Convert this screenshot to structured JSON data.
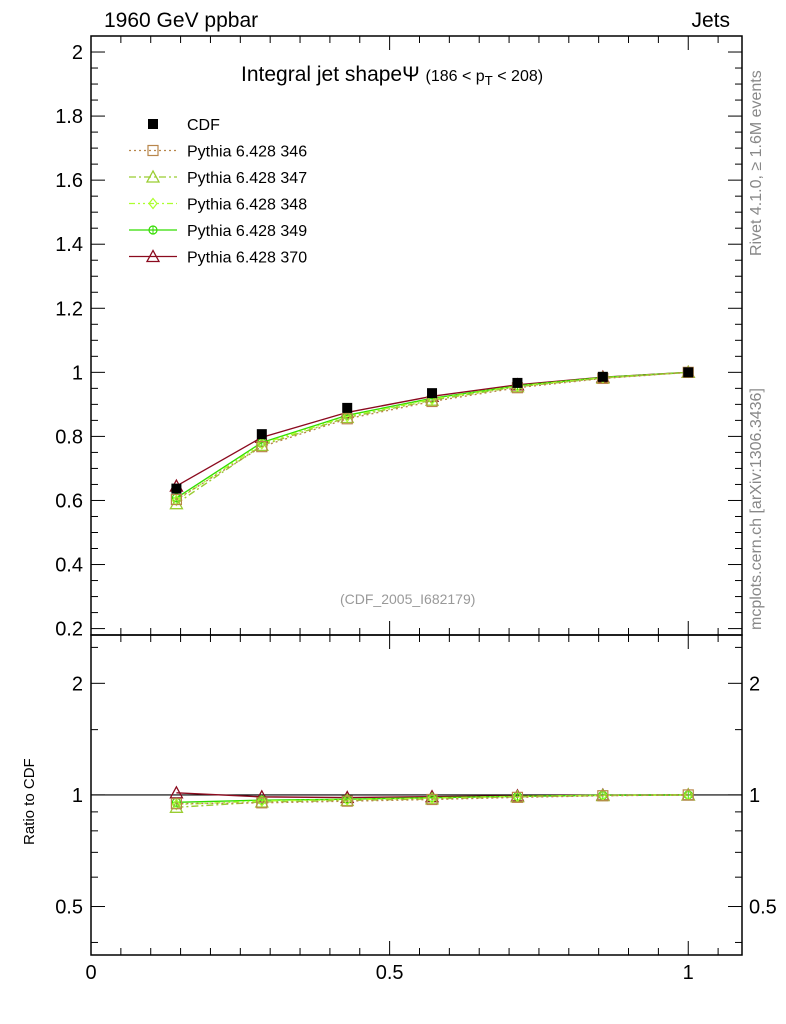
{
  "header": {
    "left_label": "1960 GeV ppbar",
    "right_label": "Jets"
  },
  "side": {
    "rivet_label": "Rivet 4.1.0, ≥ 1.6M events",
    "mcplots_label": "mcplots.cern.ch [arXiv:1306.3436]"
  },
  "plot_title": {
    "main": "Integral jet shape",
    "symbol": "Ψ",
    "range_open": "(186 < p",
    "range_sub": "T",
    "range_close": " < 208)"
  },
  "watermark": "(CDF_2005_I682179)",
  "ratio_ylabel": "Ratio to CDF",
  "chart_data": [
    {
      "type": "line",
      "panel": "main",
      "xlim": [
        0,
        1.09
      ],
      "ylim": [
        0.18,
        2.05
      ],
      "yticks": [
        0.2,
        0.4,
        0.6,
        0.8,
        1,
        1.2,
        1.4,
        1.6,
        1.8,
        2
      ],
      "ytick_labels": [
        "0.2",
        "0.4",
        "0.6",
        "0.8",
        "1",
        "1.2",
        "1.4",
        "1.6",
        "1.8",
        "2"
      ],
      "x": [
        0.143,
        0.286,
        0.429,
        0.571,
        0.714,
        0.857,
        1.0
      ],
      "series": [
        {
          "name": "CDF",
          "color": "#000000",
          "marker": "filled-square",
          "line": "none",
          "values": [
            0.637,
            0.807,
            0.889,
            0.935,
            0.967,
            0.986,
            1.0
          ]
        },
        {
          "name": "Pythia 6.428 346",
          "color": "#b8864b",
          "marker": "open-square",
          "line": "dotted",
          "values": [
            0.603,
            0.768,
            0.855,
            0.909,
            0.952,
            0.981,
            1.0
          ]
        },
        {
          "name": "Pythia 6.428 347",
          "color": "#9acd32",
          "marker": "open-triangle",
          "line": "dashdot",
          "values": [
            0.59,
            0.772,
            0.859,
            0.913,
            0.955,
            0.982,
            1.0
          ]
        },
        {
          "name": "Pythia 6.428 348",
          "color": "#adff2f",
          "marker": "open-diamond",
          "line": "dashdotdot",
          "values": [
            0.6,
            0.777,
            0.862,
            0.916,
            0.957,
            0.983,
            1.0
          ]
        },
        {
          "name": "Pythia 6.428 349",
          "color": "#33dd00",
          "marker": "open-circle-cross",
          "line": "solid",
          "values": [
            0.608,
            0.781,
            0.866,
            0.919,
            0.958,
            0.984,
            1.0
          ]
        },
        {
          "name": "Pythia 6.428 370",
          "color": "#8b0a1e",
          "marker": "open-triangle",
          "line": "solid",
          "values": [
            0.645,
            0.797,
            0.875,
            0.925,
            0.961,
            0.985,
            1.0
          ]
        }
      ]
    },
    {
      "type": "line",
      "panel": "ratio",
      "ylabel": "Ratio to CDF",
      "xlim": [
        0,
        1.09
      ],
      "ylim": [
        0.37,
        2.7
      ],
      "yscale": "log",
      "yticks": [
        0.5,
        1,
        2
      ],
      "ytick_labels": [
        "0.5",
        "1",
        "2"
      ],
      "xticks": [
        0,
        0.5,
        1
      ],
      "xtick_labels": [
        "0",
        "0.5",
        "1"
      ],
      "x": [
        0.143,
        0.286,
        0.429,
        0.571,
        0.714,
        0.857,
        1.0
      ],
      "series": [
        {
          "name": "Pythia 6.428 346",
          "color": "#b8864b",
          "marker": "open-square",
          "line": "dotted",
          "values": [
            0.947,
            0.952,
            0.962,
            0.972,
            0.985,
            0.995,
            1.0
          ]
        },
        {
          "name": "Pythia 6.428 347",
          "color": "#9acd32",
          "marker": "open-triangle",
          "line": "dashdot",
          "values": [
            0.926,
            0.957,
            0.966,
            0.976,
            0.988,
            0.996,
            1.0
          ]
        },
        {
          "name": "Pythia 6.428 348",
          "color": "#adff2f",
          "marker": "open-diamond",
          "line": "dashdotdot",
          "values": [
            0.942,
            0.963,
            0.97,
            0.98,
            0.99,
            0.997,
            1.0
          ]
        },
        {
          "name": "Pythia 6.428 349",
          "color": "#33dd00",
          "marker": "open-circle-cross",
          "line": "solid",
          "values": [
            0.955,
            0.968,
            0.974,
            0.983,
            0.991,
            0.998,
            1.0
          ]
        },
        {
          "name": "Pythia 6.428 370",
          "color": "#8b0a1e",
          "marker": "open-triangle",
          "line": "solid",
          "values": [
            1.013,
            0.988,
            0.984,
            0.989,
            0.994,
            0.999,
            1.0
          ]
        }
      ]
    }
  ]
}
